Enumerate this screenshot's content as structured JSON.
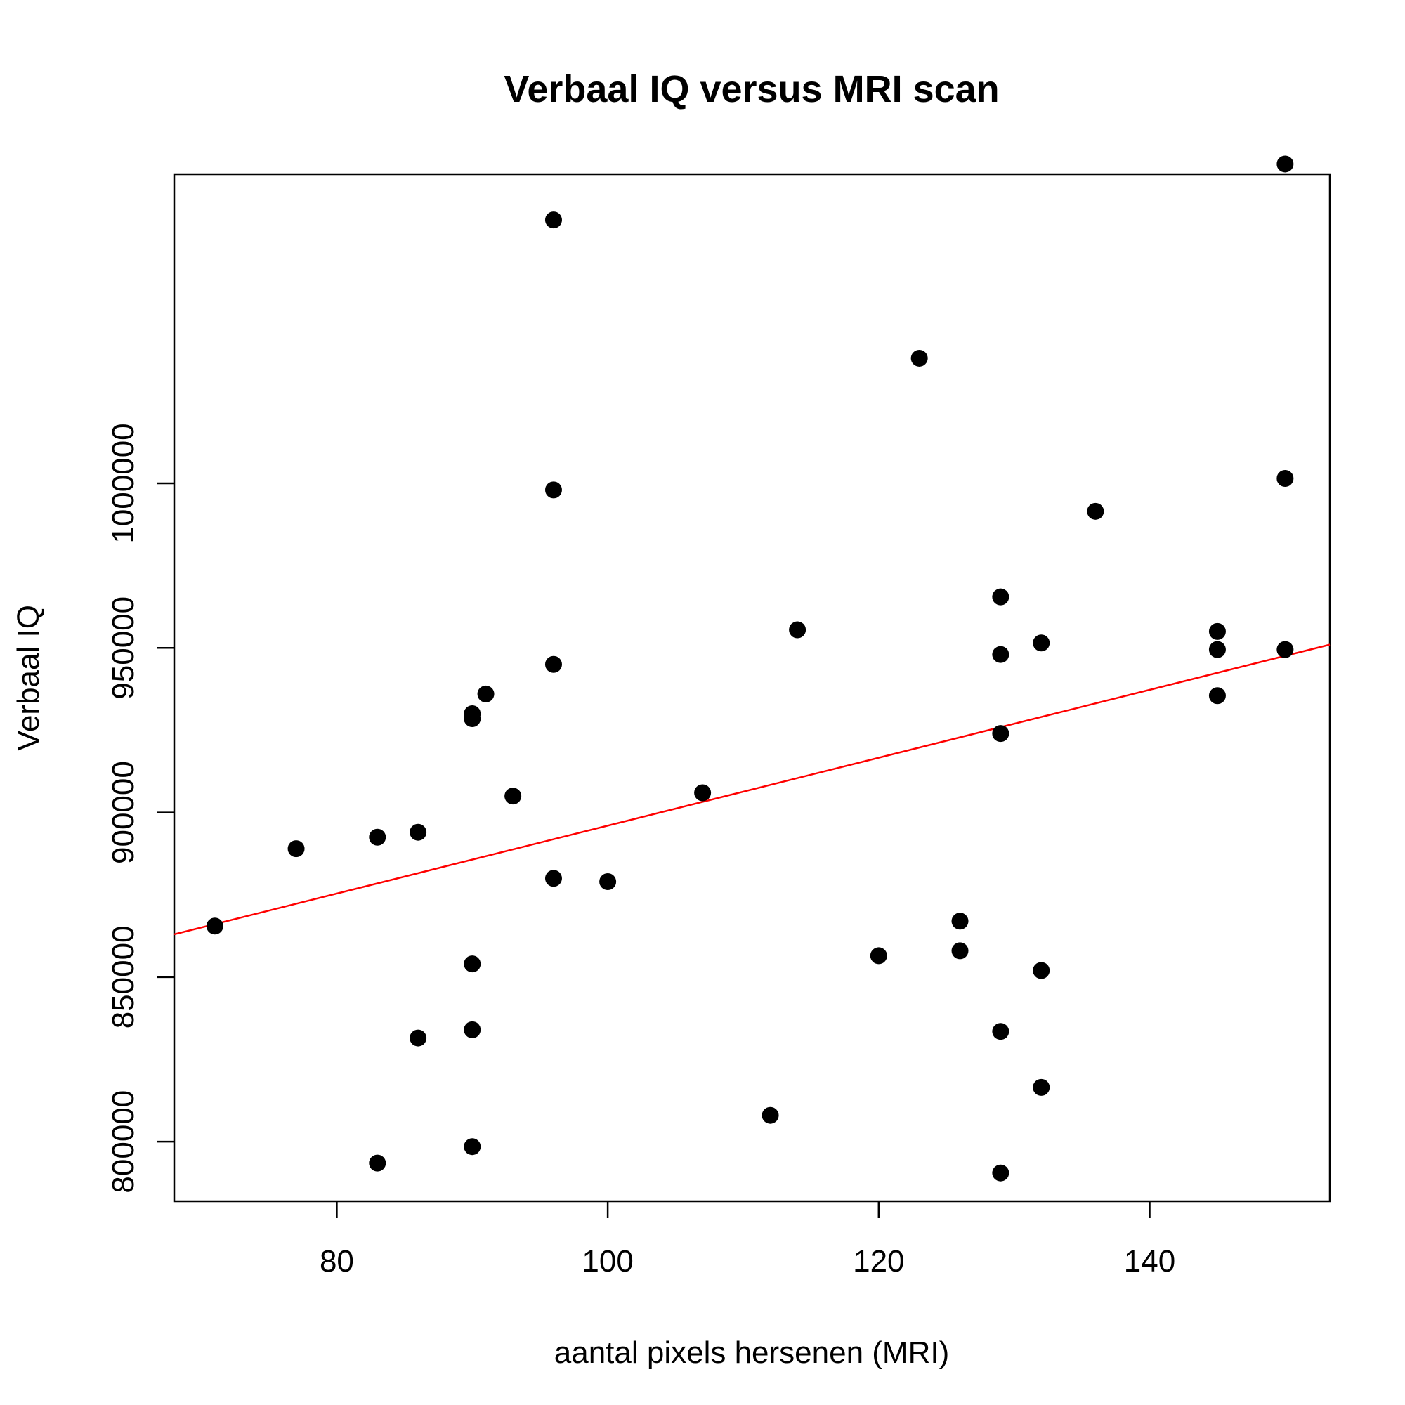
{
  "chart_data": {
    "type": "scatter",
    "title": "Verbaal IQ versus MRI scan",
    "xlabel": "aantal pixels hersenen (MRI)",
    "ylabel": "Verbaal IQ",
    "xlim": [
      68,
      153.3
    ],
    "ylim": [
      781900,
      1093900
    ],
    "xticks": [
      80,
      100,
      120,
      140
    ],
    "xtick_labels": [
      "80",
      "100",
      "120",
      "140"
    ],
    "yticks": [
      800000,
      850000,
      900000,
      950000,
      1000000
    ],
    "ytick_labels": [
      "800000",
      "850000",
      "900000",
      "950000",
      "1000000"
    ],
    "grid": false,
    "series": [
      {
        "points": [
          [
            71,
            865500
          ],
          [
            77,
            889000
          ],
          [
            83,
            892500
          ],
          [
            83,
            793500
          ],
          [
            86,
            894000
          ],
          [
            86,
            831500
          ],
          [
            90,
            930000
          ],
          [
            90,
            928500
          ],
          [
            90,
            854000
          ],
          [
            90,
            834000
          ],
          [
            90,
            798500
          ],
          [
            91,
            936000
          ],
          [
            93,
            905000
          ],
          [
            96,
            1080000
          ],
          [
            96,
            998000
          ],
          [
            96,
            945000
          ],
          [
            96,
            880000
          ],
          [
            100,
            879000
          ],
          [
            107,
            906000
          ],
          [
            112,
            808000
          ],
          [
            114,
            955500
          ],
          [
            120,
            856500
          ],
          [
            123,
            1038000
          ],
          [
            126,
            867000
          ],
          [
            126,
            858000
          ],
          [
            129,
            965500
          ],
          [
            129,
            948000
          ],
          [
            129,
            924000
          ],
          [
            129,
            833500
          ],
          [
            129,
            790500
          ],
          [
            132,
            951500
          ],
          [
            132,
            852000
          ],
          [
            132,
            816500
          ],
          [
            136,
            991500
          ],
          [
            145,
            955000
          ],
          [
            145,
            949500
          ],
          [
            145,
            935500
          ],
          [
            150,
            1097000
          ],
          [
            150,
            1001500
          ],
          [
            150,
            949500
          ]
        ],
        "color": "#000000"
      }
    ],
    "regression_line": {
      "color": "#ff0000",
      "points": [
        [
          68,
          863000
        ],
        [
          153.3,
          951000
        ]
      ]
    }
  }
}
